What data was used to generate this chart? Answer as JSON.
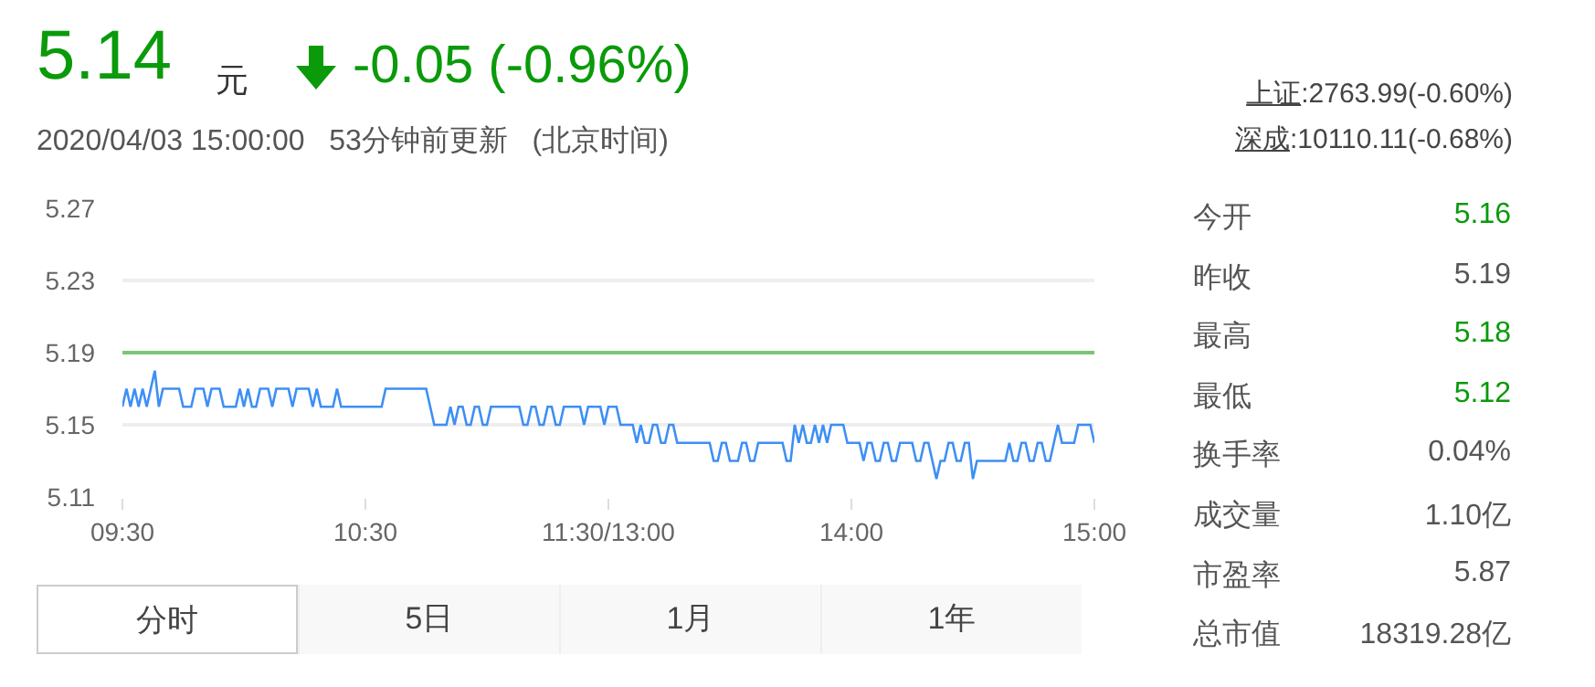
{
  "chart_data": {
    "type": "line",
    "title": "5.14",
    "subtitle": "2020/04/03 15:00:00   53分钟前更新   (北京时间)",
    "annotations": [
      "元",
      "-0.05 (-0.96%)",
      "上证",
      ":2763.99(-0.60%)",
      "深成",
      ":10110.11(-0.68%)",
      "今开",
      "5.16",
      "昨收",
      "5.19",
      "最高",
      "5.18",
      "最低",
      "5.12",
      "换手率",
      "0.04%",
      "成交量",
      "1.10亿",
      "市盈率",
      "5.87",
      "总市值",
      "18319.28亿",
      "分时",
      "5日",
      "1月",
      "1年"
    ],
    "categories": [
      "09:30",
      null,
      null,
      null,
      null,
      null,
      null,
      null,
      null,
      null,
      null,
      null,
      null,
      null,
      null,
      null,
      null,
      null,
      null,
      null,
      null,
      null,
      null,
      null,
      null,
      null,
      null,
      null,
      null,
      null,
      null,
      null,
      null,
      null,
      null,
      null,
      null,
      null,
      null,
      null,
      null,
      null,
      null,
      null,
      null,
      null,
      null,
      null,
      null,
      null,
      null,
      null,
      null,
      null,
      null,
      null,
      null,
      null,
      null,
      null,
      "10:30",
      null,
      null,
      null,
      null,
      null,
      null,
      null,
      null,
      null,
      null,
      null,
      null,
      null,
      null,
      null,
      null,
      null,
      null,
      null,
      null,
      null,
      null,
      null,
      null,
      null,
      null,
      null,
      null,
      null,
      null,
      null,
      null,
      null,
      null,
      null,
      null,
      null,
      null,
      null,
      null,
      null,
      null,
      null,
      null,
      null,
      null,
      null,
      null,
      null,
      null,
      null,
      null,
      null,
      null,
      null,
      null,
      null,
      null,
      null,
      "11:30/13:00",
      null,
      null,
      null,
      null,
      null,
      null,
      null,
      null,
      null,
      null,
      null,
      null,
      null,
      null,
      null,
      null,
      null,
      null,
      null,
      null,
      null,
      null,
      null,
      null,
      null,
      null,
      null,
      null,
      null,
      null,
      null,
      null,
      null,
      null,
      null,
      null,
      null,
      null,
      null,
      null,
      null,
      null,
      null,
      null,
      null,
      null,
      null,
      null,
      null,
      null,
      null,
      null,
      null,
      null,
      null,
      null,
      null,
      null,
      null,
      "14:00",
      null,
      null,
      null,
      null,
      null,
      null,
      null,
      null,
      null,
      null,
      null,
      null,
      null,
      null,
      null,
      null,
      null,
      null,
      null,
      null,
      null,
      null,
      null,
      null,
      null,
      null,
      null,
      null,
      null,
      null,
      null,
      null,
      null,
      null,
      null,
      null,
      null,
      null,
      null,
      null,
      null,
      null,
      null,
      null,
      null,
      null,
      null,
      null,
      null,
      null,
      null,
      null,
      null,
      null,
      null,
      null,
      null,
      null,
      null,
      "15:00"
    ],
    "series": [
      {
        "color": "#3d8ff5",
        "values": [
          5.16,
          5.17,
          5.16,
          5.17,
          5.16,
          5.17,
          5.16,
          5.17,
          5.18,
          5.16,
          5.17,
          5.17,
          5.17,
          5.17,
          5.17,
          5.16,
          5.16,
          5.16,
          5.17,
          5.17,
          5.17,
          5.16,
          5.17,
          5.17,
          5.17,
          5.16,
          5.16,
          5.16,
          5.16,
          5.17,
          5.16,
          5.17,
          5.16,
          5.16,
          5.17,
          5.17,
          5.17,
          5.16,
          5.17,
          5.17,
          5.17,
          5.17,
          5.16,
          5.17,
          5.17,
          5.17,
          5.17,
          5.16,
          5.17,
          5.16,
          5.16,
          5.16,
          5.16,
          5.17,
          5.16,
          5.16,
          5.16,
          5.16,
          5.16,
          5.16,
          5.16,
          5.16,
          5.16,
          5.16,
          5.16,
          5.17,
          5.17,
          5.17,
          5.17,
          5.17,
          5.17,
          5.17,
          5.17,
          5.17,
          5.17,
          5.17,
          5.16,
          5.15,
          5.15,
          5.15,
          5.15,
          5.16,
          5.15,
          5.16,
          5.16,
          5.15,
          5.15,
          5.16,
          5.16,
          5.15,
          5.15,
          5.16,
          5.16,
          5.16,
          5.16,
          5.16,
          5.16,
          5.16,
          5.16,
          5.15,
          5.15,
          5.16,
          5.16,
          5.15,
          5.15,
          5.16,
          5.16,
          5.15,
          5.15,
          5.16,
          5.16,
          5.16,
          5.16,
          5.16,
          5.15,
          5.16,
          5.16,
          5.16,
          5.16,
          5.15,
          5.16,
          5.16,
          5.16,
          5.15,
          5.15,
          5.15,
          5.15,
          5.14,
          5.15,
          5.14,
          5.14,
          5.15,
          5.15,
          5.14,
          5.14,
          5.15,
          5.15,
          5.14,
          5.14,
          5.14,
          5.14,
          5.14,
          5.14,
          5.14,
          5.14,
          5.14,
          5.13,
          5.13,
          5.14,
          5.14,
          5.13,
          5.13,
          5.13,
          5.14,
          5.14,
          5.13,
          5.13,
          5.14,
          5.14,
          5.14,
          5.14,
          5.14,
          5.14,
          5.14,
          5.13,
          5.13,
          5.15,
          5.14,
          5.15,
          5.14,
          5.14,
          5.15,
          5.14,
          5.15,
          5.14,
          5.15,
          5.15,
          5.15,
          5.15,
          5.14,
          5.14,
          5.14,
          5.14,
          5.13,
          5.14,
          5.14,
          5.13,
          5.13,
          5.14,
          5.14,
          5.13,
          5.13,
          5.14,
          5.14,
          5.14,
          5.14,
          5.13,
          5.13,
          5.14,
          5.14,
          5.13,
          5.12,
          5.13,
          5.13,
          5.14,
          5.14,
          5.13,
          5.13,
          5.14,
          5.14,
          5.12,
          5.13,
          5.13,
          5.13,
          5.13,
          5.13,
          5.13,
          5.13,
          5.13,
          5.14,
          5.13,
          5.13,
          5.14,
          5.14,
          5.13,
          5.13,
          5.14,
          5.14,
          5.13,
          5.13,
          5.14,
          5.15,
          5.14,
          5.14,
          5.14,
          5.14,
          5.15,
          5.15,
          5.15,
          5.15,
          5.14
        ]
      }
    ],
    "ylim": [
      5.11,
      5.27
    ],
    "yticks": [
      5.11,
      5.15,
      5.19,
      5.23,
      5.27
    ],
    "grid": "y",
    "legend": false,
    "marker": "none",
    "line_style": "solid",
    "ref_lines": [
      {
        "axis": "y",
        "value": 5.19,
        "color": "#7cc576"
      }
    ]
  }
}
